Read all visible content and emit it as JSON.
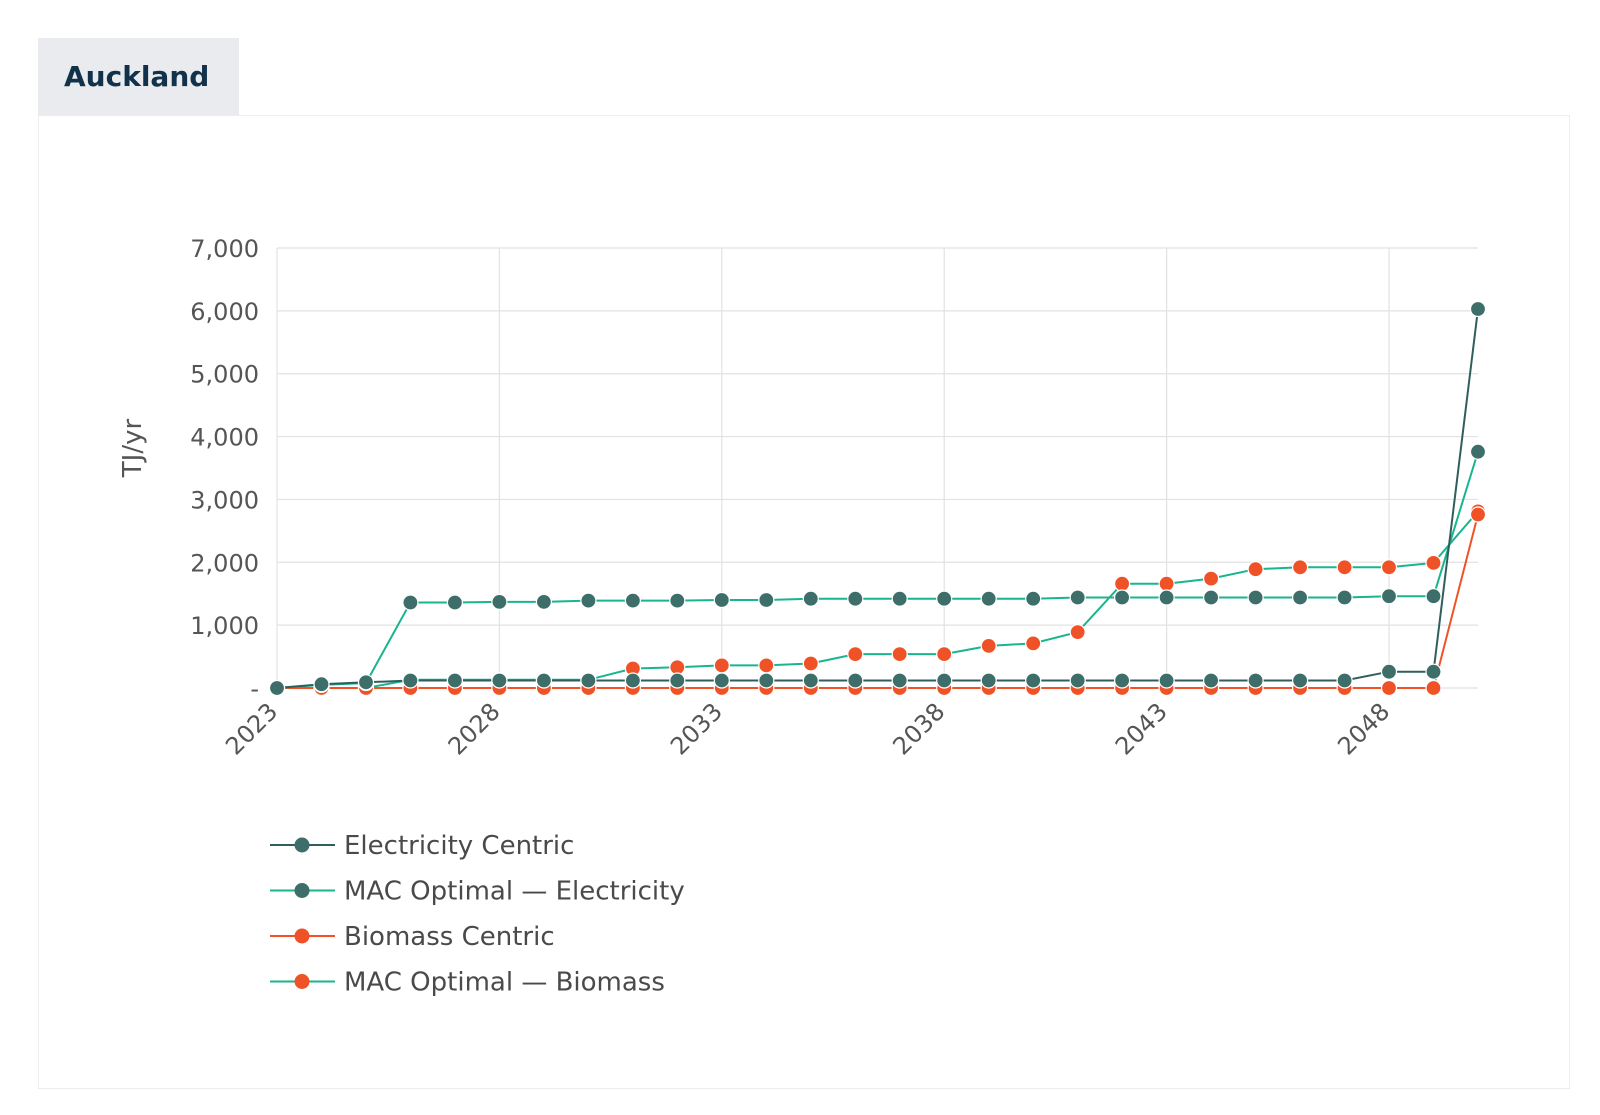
{
  "header": {
    "tab_label": "Auckland"
  },
  "chart_data": {
    "type": "line",
    "title": "",
    "xlabel": "",
    "ylabel": "TJ/yr",
    "ylim": [
      0,
      7000
    ],
    "xlim": [
      2023,
      2050
    ],
    "yticks": [
      0,
      1000,
      2000,
      3000,
      4000,
      5000,
      6000,
      7000
    ],
    "ytick_labels": [
      "-",
      "1,000",
      "2,000",
      "3,000",
      "4,000",
      "5,000",
      "6,000",
      "7,000"
    ],
    "xticks": [
      2023,
      2028,
      2033,
      2038,
      2043,
      2048
    ],
    "xtick_labels": [
      "2023",
      "2028",
      "2033",
      "2038",
      "2043",
      "2048"
    ],
    "grid": true,
    "legend_position": "bottom-left",
    "x": [
      2023,
      2024,
      2025,
      2026,
      2027,
      2028,
      2029,
      2030,
      2031,
      2032,
      2033,
      2034,
      2035,
      2036,
      2037,
      2038,
      2039,
      2040,
      2041,
      2042,
      2043,
      2044,
      2045,
      2046,
      2047,
      2048,
      2049,
      2050
    ],
    "series": [
      {
        "name": "Electricity Centric",
        "line_color": "#2f5f5c",
        "marker_color": "#3d6e6a",
        "values": [
          0,
          60,
          90,
          120,
          120,
          120,
          120,
          120,
          120,
          120,
          120,
          120,
          120,
          120,
          120,
          120,
          120,
          120,
          120,
          120,
          120,
          120,
          120,
          120,
          120,
          260,
          260,
          6030
        ]
      },
      {
        "name": "MAC Optimal — Electricity",
        "line_color": "#19b58e",
        "marker_color": "#3d6e6a",
        "values": [
          0,
          50,
          80,
          1360,
          1360,
          1370,
          1370,
          1390,
          1390,
          1390,
          1400,
          1400,
          1420,
          1420,
          1420,
          1420,
          1420,
          1420,
          1440,
          1440,
          1440,
          1440,
          1440,
          1440,
          1440,
          1460,
          1460,
          3760
        ]
      },
      {
        "name": "Biomass Centric",
        "line_color": "#f05228",
        "marker_color": "#f05228",
        "values": [
          0,
          0,
          0,
          0,
          0,
          0,
          0,
          0,
          0,
          0,
          0,
          0,
          0,
          0,
          0,
          0,
          0,
          0,
          0,
          0,
          0,
          0,
          0,
          0,
          0,
          0,
          0,
          2760
        ]
      },
      {
        "name": "MAC Optimal — Biomass",
        "line_color": "#19b58e",
        "marker_color": "#f05228",
        "values": [
          0,
          0,
          0,
          130,
          130,
          130,
          130,
          130,
          310,
          330,
          360,
          360,
          390,
          540,
          540,
          540,
          670,
          710,
          890,
          1660,
          1660,
          1740,
          1890,
          1920,
          1920,
          1920,
          1990,
          2810
        ]
      }
    ]
  }
}
